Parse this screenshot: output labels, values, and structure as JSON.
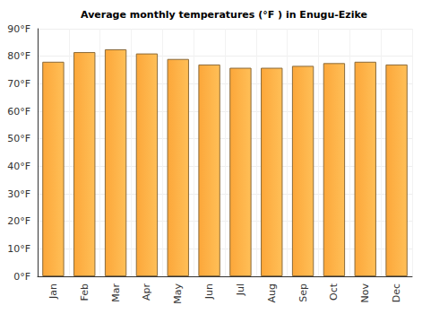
{
  "chart_data": {
    "type": "bar",
    "title": "Average monthly temperatures (°F ) in Enugu-Ezike",
    "categories": [
      "Jan",
      "Feb",
      "Mar",
      "Apr",
      "May",
      "Jun",
      "Jul",
      "Aug",
      "Sep",
      "Oct",
      "Nov",
      "Dec"
    ],
    "values": [
      78,
      81.5,
      82.5,
      81,
      79,
      77,
      75.8,
      75.8,
      76.5,
      77.5,
      78,
      77
    ],
    "color": "#fca73a",
    "ylim": [
      0,
      90
    ],
    "yticks": [
      {
        "value": 0,
        "label": "0°F"
      },
      {
        "value": 10,
        "label": "10°F"
      },
      {
        "value": 20,
        "label": "20°F"
      },
      {
        "value": 30,
        "label": "30°F"
      },
      {
        "value": 40,
        "label": "40°F"
      },
      {
        "value": 50,
        "label": "50°F"
      },
      {
        "value": 60,
        "label": "60°F"
      },
      {
        "value": 70,
        "label": "70°F"
      },
      {
        "value": 80,
        "label": "80°F"
      },
      {
        "value": 90,
        "label": "90°F"
      }
    ],
    "grid": true
  }
}
